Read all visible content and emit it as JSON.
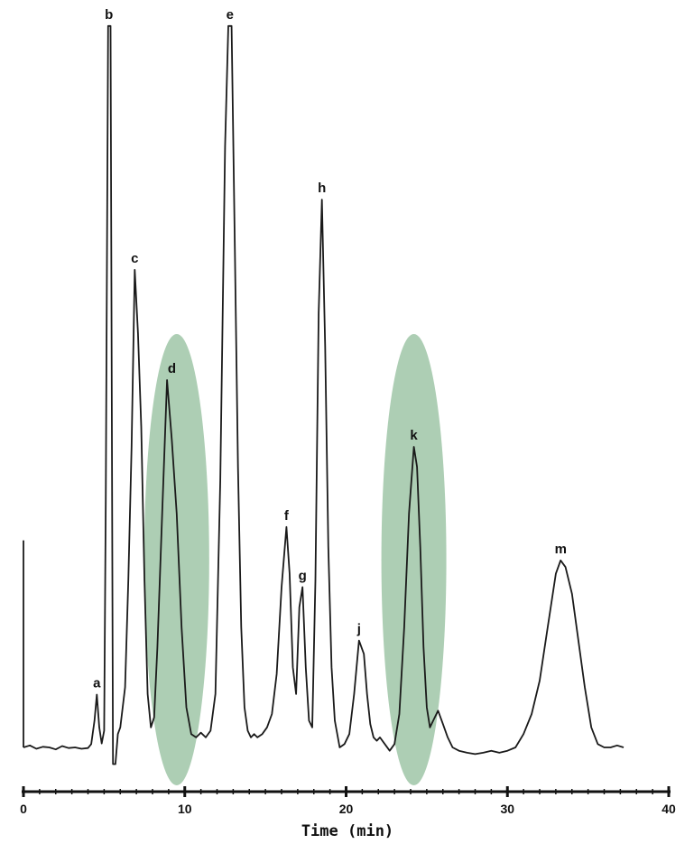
{
  "chart_data": {
    "type": "line",
    "title": "",
    "xlabel": "Time (min)",
    "ylabel": "",
    "xlim": [
      0,
      40
    ],
    "xticks": [
      0,
      10,
      20,
      30,
      40
    ],
    "xtick_labels": [
      "0",
      "10",
      "20",
      "30",
      "40"
    ],
    "grid": false,
    "series": [
      {
        "name": "",
        "x": [
          0.0,
          0.4,
          0.8,
          1.2,
          1.6,
          2.0,
          2.4,
          2.8,
          3.2,
          3.6,
          4.0,
          4.2,
          4.4,
          4.55,
          4.7,
          4.85,
          5.0,
          5.1,
          5.25,
          5.4,
          5.55,
          5.7,
          5.85,
          6.0,
          6.3,
          6.5,
          6.7,
          6.9,
          7.1,
          7.3,
          7.5,
          7.7,
          7.9,
          8.1,
          8.3,
          8.6,
          8.9,
          9.2,
          9.5,
          9.8,
          10.1,
          10.4,
          10.7,
          11.0,
          11.3,
          11.6,
          11.9,
          12.2,
          12.5,
          12.7,
          12.9,
          13.1,
          13.3,
          13.5,
          13.7,
          13.9,
          14.1,
          14.3,
          14.5,
          14.8,
          15.1,
          15.4,
          15.7,
          16.0,
          16.3,
          16.5,
          16.7,
          16.9,
          17.1,
          17.3,
          17.5,
          17.7,
          17.9,
          18.1,
          18.3,
          18.5,
          18.7,
          18.9,
          19.1,
          19.3,
          19.6,
          19.9,
          20.2,
          20.5,
          20.8,
          21.1,
          21.3,
          21.5,
          21.7,
          21.9,
          22.1,
          22.4,
          22.7,
          23.0,
          23.3,
          23.6,
          23.9,
          24.2,
          24.4,
          24.6,
          24.8,
          25.0,
          25.2,
          25.4,
          25.7,
          26.0,
          26.3,
          26.6,
          27.0,
          27.5,
          28.0,
          28.5,
          29.0,
          29.5,
          30.0,
          30.5,
          31.0,
          31.5,
          32.0,
          32.5,
          33.0,
          33.3,
          33.6,
          34.0,
          34.4,
          34.8,
          35.2,
          35.6,
          36.0,
          36.4,
          36.8,
          37.2
        ],
        "y": [
          0.0,
          0.3,
          -0.2,
          0.1,
          0.0,
          -0.3,
          0.2,
          -0.1,
          0.0,
          -0.2,
          -0.1,
          0.5,
          4.0,
          7.9,
          3.0,
          0.6,
          2.5,
          37.0,
          108.0,
          108.0,
          -2.5,
          -2.5,
          2.0,
          3.0,
          9.0,
          25.0,
          45.0,
          71.5,
          62.0,
          48.0,
          25.0,
          8.0,
          3.0,
          4.5,
          15.0,
          35.0,
          55.0,
          46.0,
          35.0,
          18.0,
          6.0,
          2.0,
          1.5,
          2.2,
          1.5,
          2.5,
          8.0,
          40.0,
          90.0,
          108.0,
          108.0,
          75.0,
          42.0,
          18.0,
          6.0,
          2.5,
          1.5,
          2.0,
          1.5,
          2.0,
          3.0,
          5.0,
          11.0,
          24.0,
          33.0,
          26.0,
          12.0,
          8.0,
          21.0,
          24.0,
          12.0,
          4.0,
          3.0,
          25.0,
          65.0,
          82.0,
          60.0,
          30.0,
          12.0,
          4.0,
          0.0,
          0.5,
          2.0,
          8.0,
          16.0,
          14.0,
          8.0,
          3.5,
          1.5,
          1.0,
          1.5,
          0.5,
          -0.5,
          0.5,
          5.0,
          18.0,
          35.0,
          45.0,
          42.0,
          30.0,
          15.0,
          6.0,
          3.0,
          4.0,
          5.5,
          3.5,
          1.5,
          0.0,
          -0.5,
          -0.8,
          -1.0,
          -0.8,
          -0.5,
          -0.8,
          -0.5,
          0.0,
          2.0,
          5.0,
          10.0,
          18.0,
          26.0,
          28.0,
          27.0,
          23.0,
          16.0,
          9.0,
          3.0,
          0.5,
          0.0,
          0.0,
          0.3,
          0.0
        ]
      }
    ],
    "peak_labels": [
      {
        "label": "a",
        "x": 4.55,
        "y": 7.9
      },
      {
        "label": "b",
        "x": 5.3,
        "y": 108.0
      },
      {
        "label": "c",
        "x": 6.9,
        "y": 71.5
      },
      {
        "label": "d",
        "x": 9.2,
        "y": 55.0
      },
      {
        "label": "e",
        "x": 12.8,
        "y": 108.0
      },
      {
        "label": "f",
        "x": 16.3,
        "y": 33.0
      },
      {
        "label": "g",
        "x": 17.3,
        "y": 24.0
      },
      {
        "label": "h",
        "x": 18.5,
        "y": 82.0
      },
      {
        "label": "j",
        "x": 20.8,
        "y": 16.0
      },
      {
        "label": "k",
        "x": 24.2,
        "y": 45.0
      },
      {
        "label": "m",
        "x": 33.3,
        "y": 28.0
      }
    ],
    "highlights": [
      {
        "center_x": 9.5,
        "color": "#9fc5a7"
      },
      {
        "center_x": 24.2,
        "color": "#9fc5a7"
      }
    ]
  }
}
